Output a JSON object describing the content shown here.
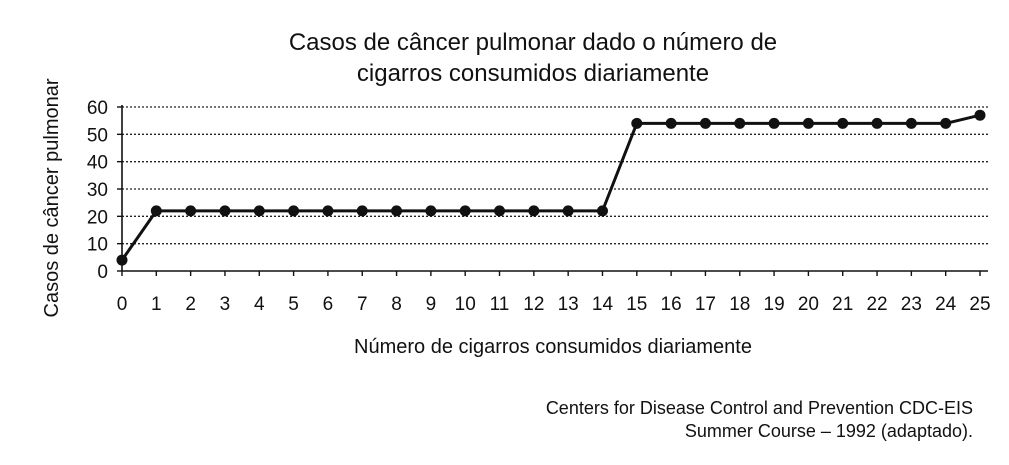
{
  "chart_data": {
    "type": "line",
    "title": [
      "Casos de câncer pulmonar dado o número de",
      "cigarros consumidos diariamente"
    ],
    "xlabel": "Número de cigarros consumidos diariamente",
    "ylabel": "Casos de câncer pulmonar",
    "x": [
      0,
      1,
      2,
      3,
      4,
      5,
      6,
      7,
      8,
      9,
      10,
      11,
      12,
      13,
      14,
      15,
      16,
      17,
      18,
      19,
      20,
      21,
      22,
      23,
      24,
      25
    ],
    "values": [
      4,
      22,
      22,
      22,
      22,
      22,
      22,
      22,
      22,
      22,
      22,
      22,
      22,
      22,
      22,
      54,
      54,
      54,
      54,
      54,
      54,
      54,
      54,
      54,
      54,
      57
    ],
    "xlim": [
      0,
      25
    ],
    "ylim": [
      0,
      60
    ],
    "yticks": [
      0,
      10,
      20,
      30,
      40,
      50,
      60
    ],
    "grid": "horizontal dotted",
    "colors": {
      "line": "#111111",
      "marker": "#111111",
      "grid": "#222222"
    }
  },
  "source": {
    "line1": "Centers for Disease Control and Prevention CDC-EIS",
    "line2": "Summer Course – 1992 (adaptado)."
  }
}
